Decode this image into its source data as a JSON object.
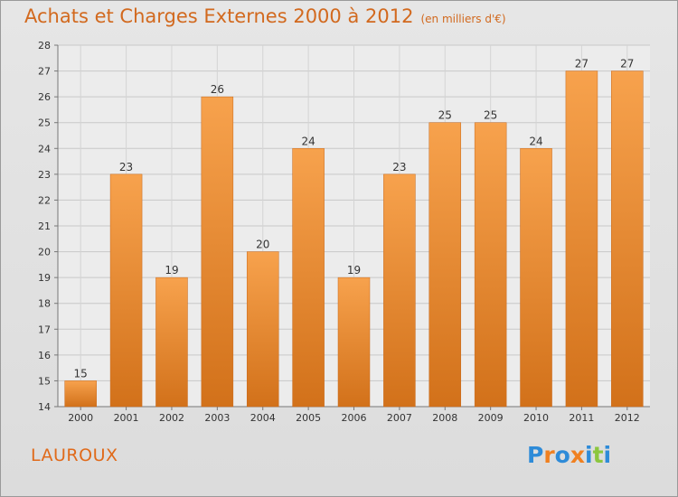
{
  "header": {
    "title": "Achats et Charges Externes 2000 à 2012",
    "unit": "(en milliers d'€)"
  },
  "footer": {
    "location": "LAUROUX",
    "brand_letters": [
      "P",
      "r",
      "o",
      "x",
      "i",
      "t",
      "i"
    ],
    "brand_colors": [
      "#2e8bd8",
      "#f08020",
      "#2e8bd8",
      "#f08020",
      "#2e8bd8",
      "#8cc63f",
      "#2e8bd8"
    ]
  },
  "colors": {
    "bar_top": "#f7a24d",
    "bar_bottom": "#d2711a",
    "accent": "#d2691e"
  },
  "chart_data": {
    "type": "bar",
    "categories": [
      "2000",
      "2001",
      "2002",
      "2003",
      "2004",
      "2005",
      "2006",
      "2007",
      "2008",
      "2009",
      "2010",
      "2011",
      "2012"
    ],
    "values": [
      15,
      23,
      19,
      26,
      20,
      24,
      19,
      23,
      25,
      25,
      24,
      27,
      27
    ],
    "ylim": [
      14,
      28
    ],
    "yticks": [
      14,
      15,
      16,
      17,
      18,
      19,
      20,
      21,
      22,
      23,
      24,
      25,
      26,
      27,
      28
    ],
    "grid": true,
    "legend": "none"
  }
}
